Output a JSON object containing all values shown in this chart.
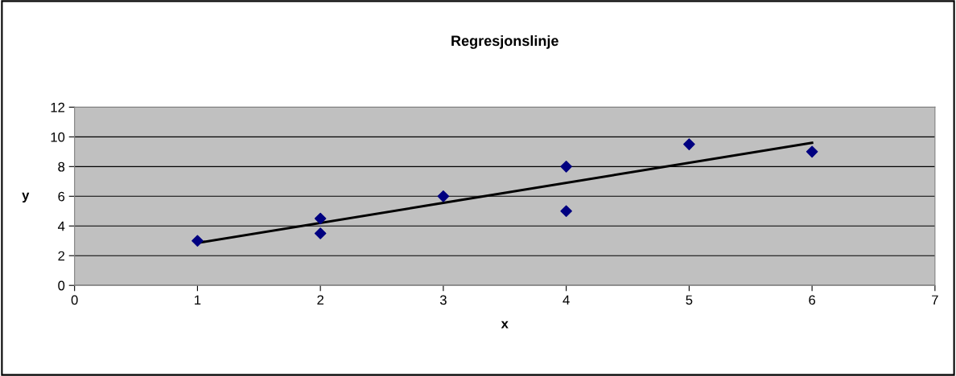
{
  "chart_data": {
    "type": "scatter",
    "title": "Regresjonslinje",
    "xlabel": "x",
    "ylabel": "y",
    "series": [
      {
        "color": "#000080",
        "marker": "diamond",
        "x": [
          1,
          2,
          2,
          3,
          4,
          4,
          5,
          6
        ],
        "values": [
          3,
          4.5,
          3.5,
          6,
          8,
          5,
          9.5,
          9
        ]
      },
      {
        "type": "line",
        "color": "#000000",
        "marker": "none",
        "line_style": "solid",
        "x": [
          1,
          6
        ],
        "values": [
          2.86,
          9.6
        ]
      }
    ],
    "xlim": [
      0,
      7
    ],
    "xticks": [
      0,
      1,
      2,
      3,
      4,
      5,
      6,
      7
    ],
    "ylim": [
      0,
      12
    ],
    "yticks": [
      0,
      2,
      4,
      6,
      8,
      10,
      12
    ],
    "grid": "y",
    "legend": false
  }
}
